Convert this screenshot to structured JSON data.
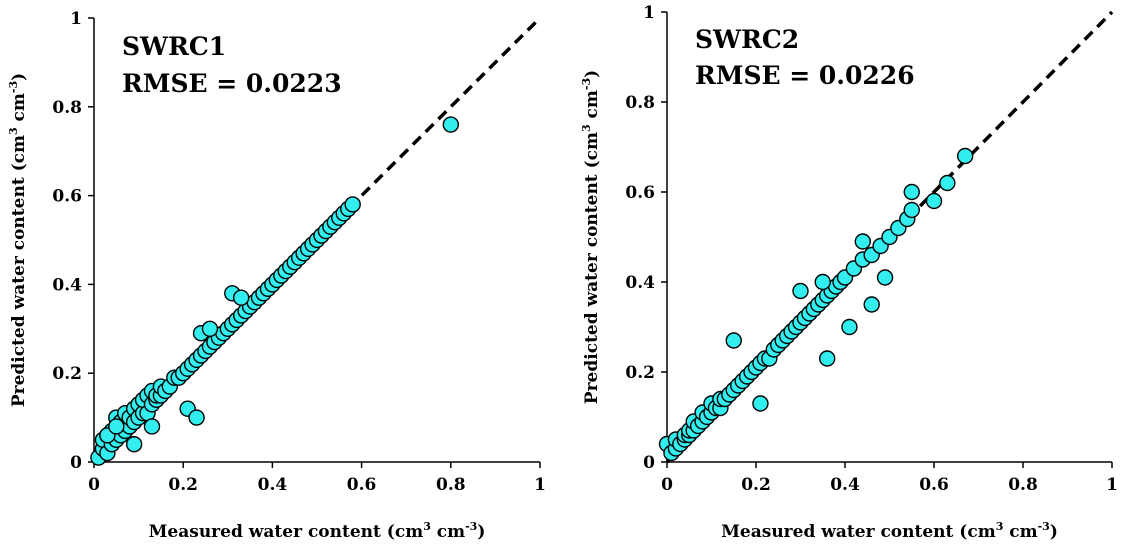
{
  "chart_data": [
    {
      "type": "scatter",
      "annotation_title": "SWRC1",
      "annotation_rmse": "RMSE = 0.0223",
      "xlabel_main": "Measured water content (cm",
      "xlabel_sup1": "3",
      "xlabel_mid": " cm",
      "xlabel_sup2": "-3",
      "xlabel_end": ")",
      "ylabel_main": "Predicted water content (cm",
      "ylabel_sup1": "3",
      "ylabel_mid": " cm",
      "ylabel_sup2": "-3",
      "ylabel_end": ")",
      "xlim": [
        0,
        1
      ],
      "ylim": [
        0,
        1
      ],
      "xticks": [
        "0",
        "0.2",
        "0.4",
        "0.6",
        "0.8",
        "1"
      ],
      "yticks": [
        "0",
        "0.2",
        "0.4",
        "0.6",
        "0.8",
        "1"
      ],
      "one_to_one_line": true,
      "marker_color": "#33EEEE",
      "x": [
        0.01,
        0.02,
        0.02,
        0.03,
        0.03,
        0.04,
        0.04,
        0.05,
        0.05,
        0.06,
        0.06,
        0.07,
        0.07,
        0.08,
        0.08,
        0.09,
        0.09,
        0.1,
        0.1,
        0.11,
        0.11,
        0.12,
        0.12,
        0.13,
        0.13,
        0.14,
        0.14,
        0.15,
        0.15,
        0.16,
        0.17,
        0.18,
        0.19,
        0.2,
        0.21,
        0.22,
        0.23,
        0.24,
        0.25,
        0.26,
        0.27,
        0.28,
        0.29,
        0.3,
        0.31,
        0.32,
        0.33,
        0.34,
        0.35,
        0.36,
        0.37,
        0.38,
        0.39,
        0.4,
        0.41,
        0.42,
        0.43,
        0.44,
        0.45,
        0.46,
        0.47,
        0.48,
        0.49,
        0.5,
        0.51,
        0.52,
        0.53,
        0.54,
        0.55,
        0.56,
        0.57,
        0.58,
        0.8,
        0.03,
        0.13,
        0.21,
        0.23,
        0.24,
        0.26,
        0.31,
        0.33,
        0.05,
        0.09
      ],
      "y": [
        0.01,
        0.03,
        0.05,
        0.02,
        0.06,
        0.04,
        0.07,
        0.05,
        0.1,
        0.06,
        0.09,
        0.07,
        0.11,
        0.08,
        0.1,
        0.09,
        0.12,
        0.1,
        0.13,
        0.11,
        0.14,
        0.11,
        0.15,
        0.13,
        0.16,
        0.14,
        0.15,
        0.15,
        0.17,
        0.16,
        0.17,
        0.19,
        0.19,
        0.2,
        0.21,
        0.22,
        0.23,
        0.24,
        0.25,
        0.26,
        0.27,
        0.28,
        0.29,
        0.3,
        0.31,
        0.32,
        0.33,
        0.34,
        0.35,
        0.36,
        0.37,
        0.38,
        0.39,
        0.4,
        0.41,
        0.42,
        0.43,
        0.44,
        0.45,
        0.46,
        0.47,
        0.48,
        0.49,
        0.5,
        0.51,
        0.52,
        0.53,
        0.54,
        0.55,
        0.56,
        0.57,
        0.58,
        0.76,
        0.06,
        0.08,
        0.12,
        0.1,
        0.29,
        0.3,
        0.38,
        0.37,
        0.08,
        0.04
      ]
    },
    {
      "type": "scatter",
      "annotation_title": "SWRC2",
      "annotation_rmse": "RMSE = 0.0226",
      "xlabel_main": "Measured water content (cm",
      "xlabel_sup1": "3",
      "xlabel_mid": " cm",
      "xlabel_sup2": "-3",
      "xlabel_end": ")",
      "ylabel_main": "Predicted water content (cm",
      "ylabel_sup1": "3",
      "ylabel_mid": " cm",
      "ylabel_sup2": "-3",
      "ylabel_end": ")",
      "xlim": [
        0,
        1
      ],
      "ylim": [
        0,
        1
      ],
      "xticks": [
        "0",
        "0.2",
        "0.4",
        "0.6",
        "0.8",
        "1"
      ],
      "yticks": [
        "0",
        "0.2",
        "0.4",
        "0.6",
        "0.8",
        "1"
      ],
      "one_to_one_line": true,
      "marker_color": "#33EEEE",
      "x": [
        0.0,
        0.01,
        0.02,
        0.02,
        0.03,
        0.04,
        0.04,
        0.05,
        0.05,
        0.06,
        0.06,
        0.07,
        0.08,
        0.08,
        0.09,
        0.1,
        0.1,
        0.11,
        0.12,
        0.12,
        0.13,
        0.14,
        0.15,
        0.16,
        0.17,
        0.18,
        0.19,
        0.2,
        0.21,
        0.22,
        0.23,
        0.24,
        0.25,
        0.26,
        0.27,
        0.28,
        0.29,
        0.3,
        0.31,
        0.32,
        0.33,
        0.34,
        0.35,
        0.36,
        0.37,
        0.38,
        0.39,
        0.4,
        0.42,
        0.44,
        0.46,
        0.48,
        0.5,
        0.52,
        0.54,
        0.55,
        0.6,
        0.63,
        0.67,
        0.15,
        0.21,
        0.36,
        0.41,
        0.46,
        0.49,
        0.3,
        0.35,
        0.44,
        0.55
      ],
      "y": [
        0.04,
        0.02,
        0.03,
        0.05,
        0.04,
        0.05,
        0.06,
        0.06,
        0.07,
        0.07,
        0.09,
        0.08,
        0.09,
        0.11,
        0.1,
        0.11,
        0.13,
        0.12,
        0.12,
        0.14,
        0.14,
        0.15,
        0.16,
        0.17,
        0.18,
        0.19,
        0.2,
        0.21,
        0.22,
        0.23,
        0.23,
        0.25,
        0.26,
        0.27,
        0.28,
        0.29,
        0.3,
        0.31,
        0.32,
        0.33,
        0.34,
        0.35,
        0.36,
        0.37,
        0.38,
        0.39,
        0.4,
        0.41,
        0.43,
        0.45,
        0.46,
        0.48,
        0.5,
        0.52,
        0.54,
        0.56,
        0.58,
        0.62,
        0.68,
        0.27,
        0.13,
        0.23,
        0.3,
        0.35,
        0.41,
        0.38,
        0.4,
        0.49,
        0.6
      ]
    }
  ]
}
